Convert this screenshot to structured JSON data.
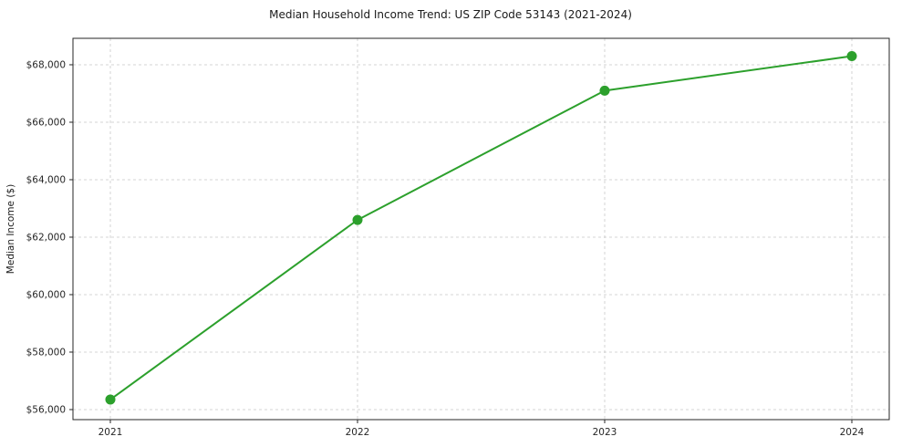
{
  "chart_data": {
    "type": "line",
    "title": "Median Household Income Trend: US ZIP Code 53143 (2021-2024)",
    "xlabel": "",
    "ylabel": "Median Income ($)",
    "categories": [
      "2021",
      "2022",
      "2023",
      "2024"
    ],
    "series": [
      {
        "name": "Median Household Income",
        "values": [
          56350,
          62600,
          67100,
          68300
        ]
      }
    ],
    "ylim": [
      55650,
      68920
    ],
    "yticks": [
      {
        "value": 56000,
        "label": "$56,000"
      },
      {
        "value": 58000,
        "label": "$58,000"
      },
      {
        "value": 60000,
        "label": "$60,000"
      },
      {
        "value": 62000,
        "label": "$62,000"
      },
      {
        "value": 64000,
        "label": "$64,000"
      },
      {
        "value": 66000,
        "label": "$66,000"
      },
      {
        "value": 68000,
        "label": "$68,000"
      }
    ],
    "grid": true,
    "grid_style": "dashed",
    "legend": "none",
    "marker": "circle",
    "colors": {
      "line": "#2ca02c",
      "marker": "#2ca02c",
      "grid": "#c9c9c9",
      "spine": "#262626",
      "text": "#1a1a1a",
      "background": "#ffffff"
    }
  }
}
